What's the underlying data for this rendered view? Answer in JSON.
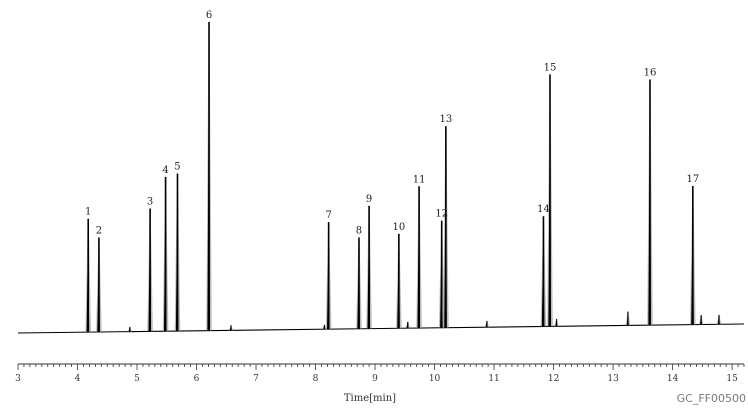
{
  "chart_data": {
    "type": "line",
    "title": "",
    "xlabel": "Time[min]",
    "ylabel": "",
    "xlim": [
      3,
      15.2
    ],
    "ylim": [
      0,
      100
    ],
    "x_ticks": [
      3,
      4,
      5,
      6,
      7,
      8,
      9,
      10,
      11,
      12,
      13,
      14,
      15
    ],
    "x_tick_labels": [
      "3",
      "4",
      "5",
      "6",
      "7",
      "8",
      "9",
      "10",
      "11",
      "12",
      "13",
      "14",
      "15"
    ],
    "grid": false,
    "colors": {
      "trace": "#000000",
      "axis": "#333333"
    },
    "peaks": [
      {
        "label": "1",
        "rt": 4.18,
        "height": 36
      },
      {
        "label": "2",
        "rt": 4.36,
        "height": 30
      },
      {
        "label": "3",
        "rt": 5.22,
        "height": 39
      },
      {
        "label": "4",
        "rt": 5.48,
        "height": 49
      },
      {
        "label": "5",
        "rt": 5.68,
        "height": 50
      },
      {
        "label": "6",
        "rt": 6.21,
        "height": 98
      },
      {
        "label": "7",
        "rt": 8.22,
        "height": 34
      },
      {
        "label": "8",
        "rt": 8.73,
        "height": 29
      },
      {
        "label": "9",
        "rt": 8.9,
        "height": 39
      },
      {
        "label": "10",
        "rt": 9.4,
        "height": 30
      },
      {
        "label": "11",
        "rt": 9.74,
        "height": 45
      },
      {
        "label": "12",
        "rt": 10.12,
        "height": 34
      },
      {
        "label": "13",
        "rt": 10.19,
        "height": 64
      },
      {
        "label": "14",
        "rt": 11.83,
        "height": 35
      },
      {
        "label": "15",
        "rt": 11.94,
        "height": 80
      },
      {
        "label": "16",
        "rt": 13.62,
        "height": 78
      },
      {
        "label": "17",
        "rt": 14.34,
        "height": 44
      }
    ],
    "minor_peaks": [
      {
        "rt": 4.88,
        "height": 1.5
      },
      {
        "rt": 6.58,
        "height": 1.6
      },
      {
        "rt": 8.15,
        "height": 1.4
      },
      {
        "rt": 9.55,
        "height": 2
      },
      {
        "rt": 10.88,
        "height": 2
      },
      {
        "rt": 12.05,
        "height": 2.3
      },
      {
        "rt": 13.25,
        "height": 4.4
      },
      {
        "rt": 14.48,
        "height": 3
      },
      {
        "rt": 14.78,
        "height": 3
      }
    ]
  },
  "watermark": "GC_FF00500"
}
